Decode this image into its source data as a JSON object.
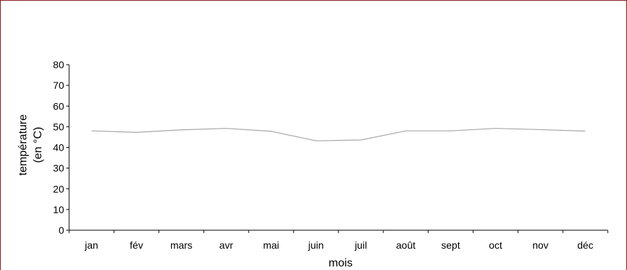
{
  "chart_data": {
    "type": "line",
    "categories": [
      "jan",
      "fév",
      "mars",
      "avr",
      "mai",
      "juin",
      "juil",
      "août",
      "sept",
      "oct",
      "nov",
      "déc"
    ],
    "series": [
      {
        "values": [
          48,
          47.3,
          48.5,
          49.2,
          47.8,
          43.2,
          43.6,
          48,
          48,
          49.2,
          48.6,
          47.9
        ]
      }
    ],
    "title": "",
    "xlabel": "mois",
    "ylabel_lines": [
      "température",
      "(en °C)"
    ],
    "ylim": [
      0,
      80
    ],
    "yticks": [
      0,
      10,
      20,
      30,
      40,
      50,
      60,
      70,
      80
    ],
    "grid": false,
    "line_color": "#a6a6a6"
  }
}
